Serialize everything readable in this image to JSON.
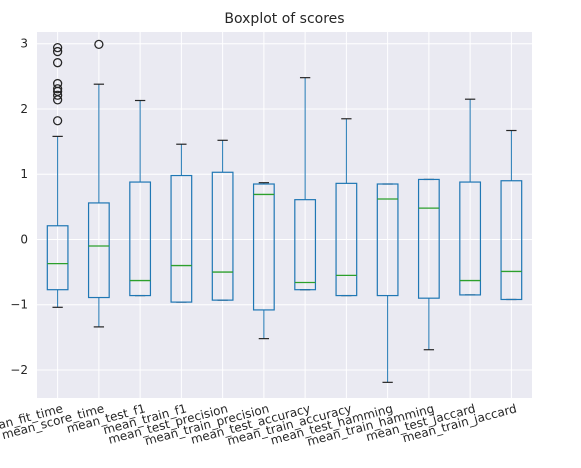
{
  "chart_data": {
    "type": "boxplot",
    "title": "Boxplot of scores",
    "xlabel": "",
    "ylabel": "",
    "ylim": [
      -2.43,
      3.18
    ],
    "yticks": [
      -2,
      -1,
      0,
      1,
      2,
      3
    ],
    "ytick_labels": [
      "−2",
      "−1",
      "0",
      "1",
      "2",
      "3"
    ],
    "grid": true,
    "colors": {
      "background": "#eaeaf2",
      "grid": "#ffffff",
      "box": "#1f77b4",
      "median": "#2ca02c",
      "whisker": "#262626",
      "text": "#262626"
    },
    "categories": [
      "mean_fit_time",
      "mean_score_time",
      "mean_test_f1",
      "mean_train_f1",
      "mean_test_precision",
      "mean_train_precision",
      "mean_test_accuracy",
      "mean_train_accuracy",
      "mean_test_hamming",
      "mean_train_hamming",
      "mean_test_jaccard",
      "mean_train_jaccard"
    ],
    "boxes": [
      {
        "whislo": -1.04,
        "q1": -0.77,
        "med": -0.37,
        "q3": 0.21,
        "whishi": 1.58,
        "fliers": [
          1.82,
          2.14,
          2.21,
          2.27,
          2.31,
          2.39,
          2.71,
          2.88,
          2.94
        ]
      },
      {
        "whislo": -1.34,
        "q1": -0.89,
        "med": -0.1,
        "q3": 0.56,
        "whishi": 2.38,
        "fliers": [
          2.99
        ]
      },
      {
        "whislo": -0.86,
        "q1": -0.86,
        "med": -0.63,
        "q3": 0.88,
        "whishi": 2.13,
        "fliers": []
      },
      {
        "whislo": -0.96,
        "q1": -0.96,
        "med": -0.4,
        "q3": 0.98,
        "whishi": 1.46,
        "fliers": []
      },
      {
        "whislo": -0.93,
        "q1": -0.93,
        "med": -0.5,
        "q3": 1.03,
        "whishi": 1.52,
        "fliers": []
      },
      {
        "whislo": -1.52,
        "q1": -1.08,
        "med": 0.69,
        "q3": 0.85,
        "whishi": 0.87,
        "fliers": []
      },
      {
        "whislo": -0.77,
        "q1": -0.77,
        "med": -0.66,
        "q3": 0.61,
        "whishi": 2.48,
        "fliers": []
      },
      {
        "whislo": -0.86,
        "q1": -0.86,
        "med": -0.55,
        "q3": 0.86,
        "whishi": 1.85,
        "fliers": []
      },
      {
        "whislo": -2.19,
        "q1": -0.86,
        "med": 0.62,
        "q3": 0.85,
        "whishi": 0.85,
        "fliers": []
      },
      {
        "whislo": -1.69,
        "q1": -0.9,
        "med": 0.48,
        "q3": 0.92,
        "whishi": 0.92,
        "fliers": []
      },
      {
        "whislo": -0.85,
        "q1": -0.85,
        "med": -0.63,
        "q3": 0.88,
        "whishi": 2.15,
        "fliers": []
      },
      {
        "whislo": -0.92,
        "q1": -0.92,
        "med": -0.49,
        "q3": 0.9,
        "whishi": 1.67,
        "fliers": []
      }
    ]
  }
}
